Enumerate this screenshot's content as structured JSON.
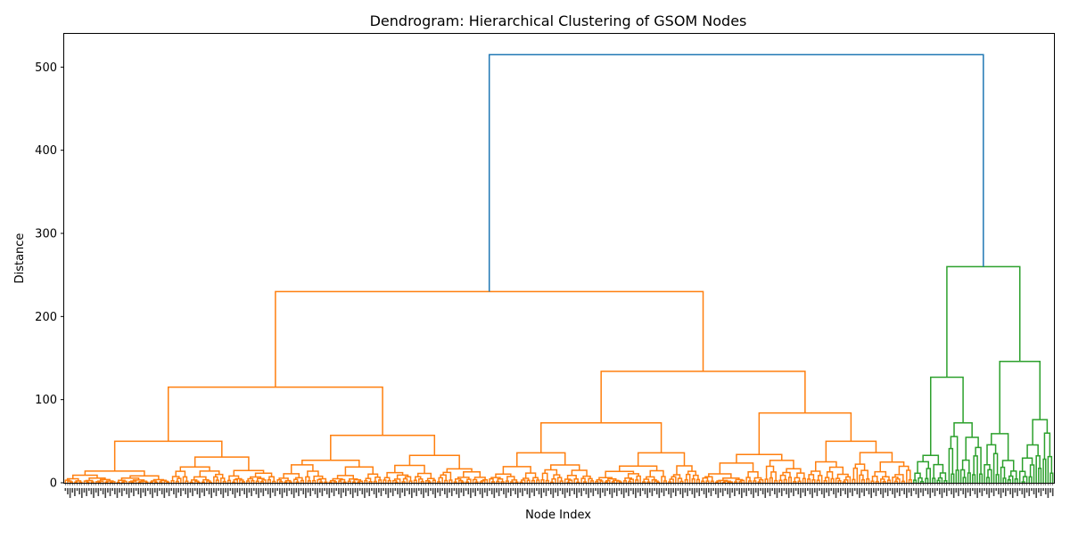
{
  "chart_data": {
    "type": "dendrogram",
    "title": "Dendrogram: Hierarchical Clustering of GSOM Nodes",
    "xlabel": "Node Index",
    "ylabel": "Distance",
    "ylim": [
      0,
      540
    ],
    "yticks": [
      0,
      100,
      200,
      300,
      400,
      500
    ],
    "grid": false,
    "colors": {
      "root_link": "#1f77b4",
      "cluster_orange": "#ff7f0e",
      "cluster_green": "#2ca02c",
      "axis": "#000000"
    },
    "leaf_count": 420,
    "root_merge_height": 515,
    "clusters": [
      {
        "color": "#ff7f0e",
        "merge_height": 230,
        "children": [
          {
            "merge_height": 115,
            "children": [
              {
                "merge_height": 50,
                "children": [
                  {
                    "merge_height": 14
                  },
                  {
                    "merge_height": 31
                  }
                ]
              },
              {
                "merge_height": 57,
                "children": [
                  {
                    "merge_height": 27
                  },
                  {
                    "merge_height": 33
                  }
                ]
              }
            ]
          },
          {
            "merge_height": 134,
            "children": [
              {
                "merge_height": 72,
                "children": [
                  {
                    "merge_height": 36
                  },
                  {
                    "merge_height": 36
                  }
                ]
              },
              {
                "merge_height": 84,
                "children": [
                  {
                    "merge_height": 34
                  },
                  {
                    "merge_height": 50
                  }
                ]
              }
            ]
          }
        ]
      },
      {
        "color": "#2ca02c",
        "merge_height": 260,
        "children": [
          {
            "merge_height": 127,
            "children": [
              {
                "merge_height": 33
              },
              {
                "merge_height": 72
              }
            ]
          },
          {
            "merge_height": 146,
            "children": [
              {
                "merge_height": 59
              },
              {
                "merge_height": 76
              }
            ]
          }
        ]
      }
    ]
  }
}
